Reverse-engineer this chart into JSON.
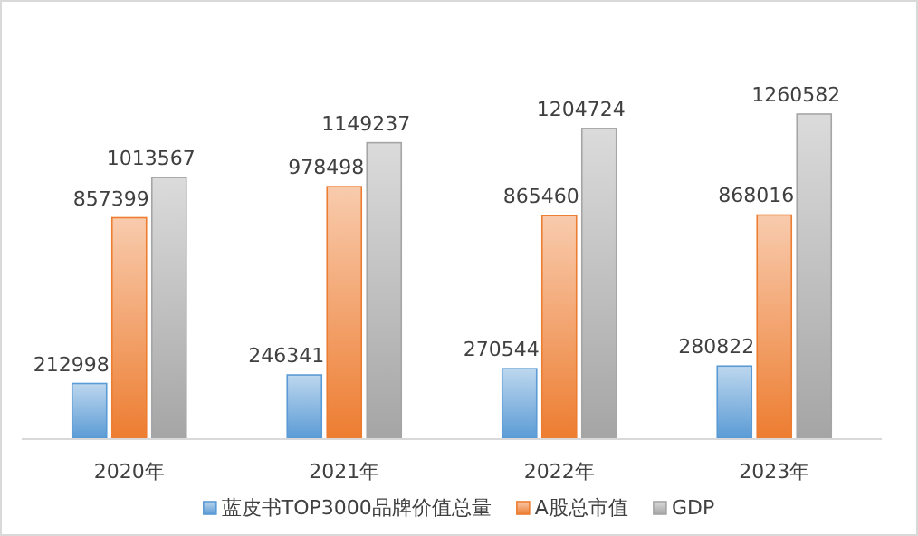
{
  "chart_data": {
    "type": "bar",
    "categories": [
      "2020年",
      "2021年",
      "2022年",
      "2023年"
    ],
    "series": [
      {
        "name": "蓝皮书TOP3000品牌价值总量",
        "color": "#5b9bd5",
        "values": [
          212998,
          246341,
          270544,
          280822
        ]
      },
      {
        "name": "A股总市值",
        "color": "#ed7d31",
        "values": [
          857399,
          978498,
          865460,
          868016
        ]
      },
      {
        "name": "GDP",
        "color": "#a5a5a5",
        "values": [
          1013567,
          1149237,
          1204724,
          1260582
        ]
      }
    ],
    "data_labels": true,
    "legend": "bottom"
  }
}
